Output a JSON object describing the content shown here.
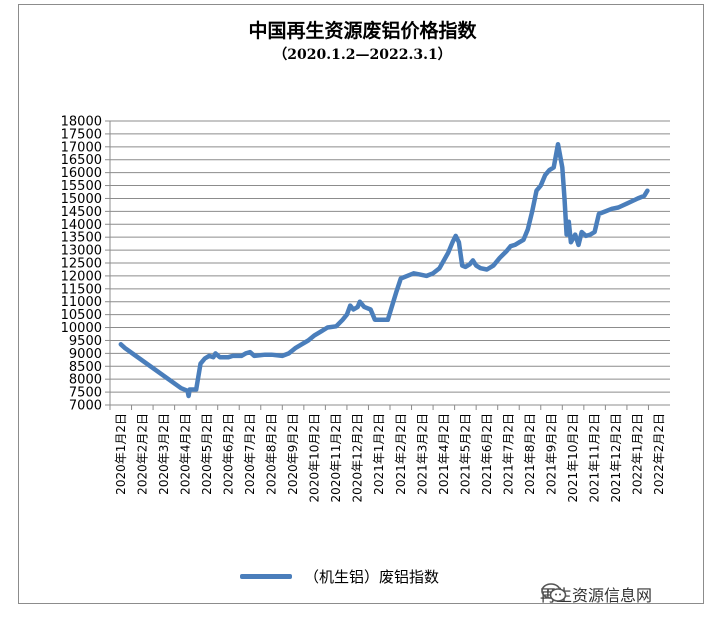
{
  "chart_data": {
    "type": "line",
    "title": "中国再生资源废铝价格指数",
    "subtitle": "（2020.1.2—2022.3.1）",
    "ylim": [
      7000,
      18000
    ],
    "ytick_step": 500,
    "yticks": [
      "7000",
      "7500",
      "8000",
      "8500",
      "9000",
      "9500",
      "10000",
      "10500",
      "11000",
      "11500",
      "12000",
      "12500",
      "13000",
      "13500",
      "14000",
      "14500",
      "15000",
      "15500",
      "16000",
      "16500",
      "17000",
      "17500",
      "18000"
    ],
    "grid": "horizontal",
    "legend": "bottom",
    "categories": [
      "2020年1月2日",
      "2020年2月2日",
      "2020年3月2日",
      "2020年4月2日",
      "2020年5月2日",
      "2020年6月2日",
      "2020年7月2日",
      "2020年8月2日",
      "2020年9月2日",
      "2020年10月2日",
      "2020年11月2日",
      "2020年12月2日",
      "2021年1月2日",
      "2021年2月2日",
      "2021年3月2日",
      "2021年4月2日",
      "2021年5月2日",
      "2021年6月2日",
      "2021年7月2日",
      "2021年8月2日",
      "2021年9月2日",
      "2021年10月2日",
      "2021年11月2日",
      "2021年12月2日",
      "2022年1月2日",
      "2022年2月2日"
    ],
    "series": [
      {
        "name": "（机生铝）废铝指数",
        "color": "#4a7ebb",
        "points": [
          [
            0.0,
            9350
          ],
          [
            0.2,
            9200
          ],
          [
            2.8,
            7650
          ],
          [
            3.1,
            7550
          ],
          [
            3.15,
            7350
          ],
          [
            3.2,
            7600
          ],
          [
            3.5,
            7600
          ],
          [
            3.7,
            8600
          ],
          [
            3.9,
            8800
          ],
          [
            4.1,
            8900
          ],
          [
            4.3,
            8850
          ],
          [
            4.4,
            9000
          ],
          [
            4.6,
            8850
          ],
          [
            5.0,
            8850
          ],
          [
            5.2,
            8900
          ],
          [
            5.6,
            8900
          ],
          [
            5.8,
            9000
          ],
          [
            6.0,
            9050
          ],
          [
            6.2,
            8900
          ],
          [
            6.7,
            8950
          ],
          [
            7.0,
            8950
          ],
          [
            7.5,
            8900
          ],
          [
            7.8,
            9000
          ],
          [
            8.1,
            9200
          ],
          [
            8.4,
            9350
          ],
          [
            8.7,
            9500
          ],
          [
            9.0,
            9700
          ],
          [
            9.3,
            9850
          ],
          [
            9.6,
            10000
          ],
          [
            10.0,
            10050
          ],
          [
            10.3,
            10300
          ],
          [
            10.5,
            10500
          ],
          [
            10.65,
            10850
          ],
          [
            10.8,
            10700
          ],
          [
            11.0,
            10800
          ],
          [
            11.1,
            11000
          ],
          [
            11.3,
            10800
          ],
          [
            11.6,
            10700
          ],
          [
            11.8,
            10300
          ],
          [
            12.4,
            10300
          ],
          [
            12.8,
            11400
          ],
          [
            13.0,
            11900
          ],
          [
            13.3,
            12000
          ],
          [
            13.6,
            12100
          ],
          [
            13.9,
            12050
          ],
          [
            14.2,
            12000
          ],
          [
            14.5,
            12100
          ],
          [
            14.8,
            12300
          ],
          [
            15.2,
            12900
          ],
          [
            15.4,
            13300
          ],
          [
            15.55,
            13550
          ],
          [
            15.7,
            13300
          ],
          [
            15.85,
            12400
          ],
          [
            16.0,
            12350
          ],
          [
            16.2,
            12450
          ],
          [
            16.35,
            12600
          ],
          [
            16.5,
            12400
          ],
          [
            16.7,
            12300
          ],
          [
            17.0,
            12250
          ],
          [
            17.3,
            12400
          ],
          [
            17.6,
            12700
          ],
          [
            17.9,
            12950
          ],
          [
            18.1,
            13150
          ],
          [
            18.3,
            13200
          ],
          [
            18.5,
            13300
          ],
          [
            18.7,
            13400
          ],
          [
            18.9,
            13800
          ],
          [
            19.1,
            14500
          ],
          [
            19.3,
            15300
          ],
          [
            19.5,
            15500
          ],
          [
            19.7,
            15900
          ],
          [
            19.9,
            16100
          ],
          [
            20.1,
            16200
          ],
          [
            20.3,
            17100
          ],
          [
            20.5,
            16200
          ],
          [
            20.6,
            15000
          ],
          [
            20.7,
            13600
          ],
          [
            20.8,
            14100
          ],
          [
            20.9,
            13300
          ],
          [
            21.1,
            13600
          ],
          [
            21.25,
            13200
          ],
          [
            21.4,
            13700
          ],
          [
            21.6,
            13550
          ],
          [
            21.8,
            13600
          ],
          [
            22.0,
            13700
          ],
          [
            22.2,
            14400
          ],
          [
            22.5,
            14500
          ],
          [
            22.8,
            14600
          ],
          [
            23.1,
            14650
          ],
          [
            23.5,
            14800
          ],
          [
            24.0,
            15000
          ],
          [
            24.3,
            15100
          ],
          [
            24.45,
            15300
          ]
        ]
      }
    ]
  },
  "watermark": {
    "text": "再生资源信息网",
    "icon": "wechat-icon"
  }
}
